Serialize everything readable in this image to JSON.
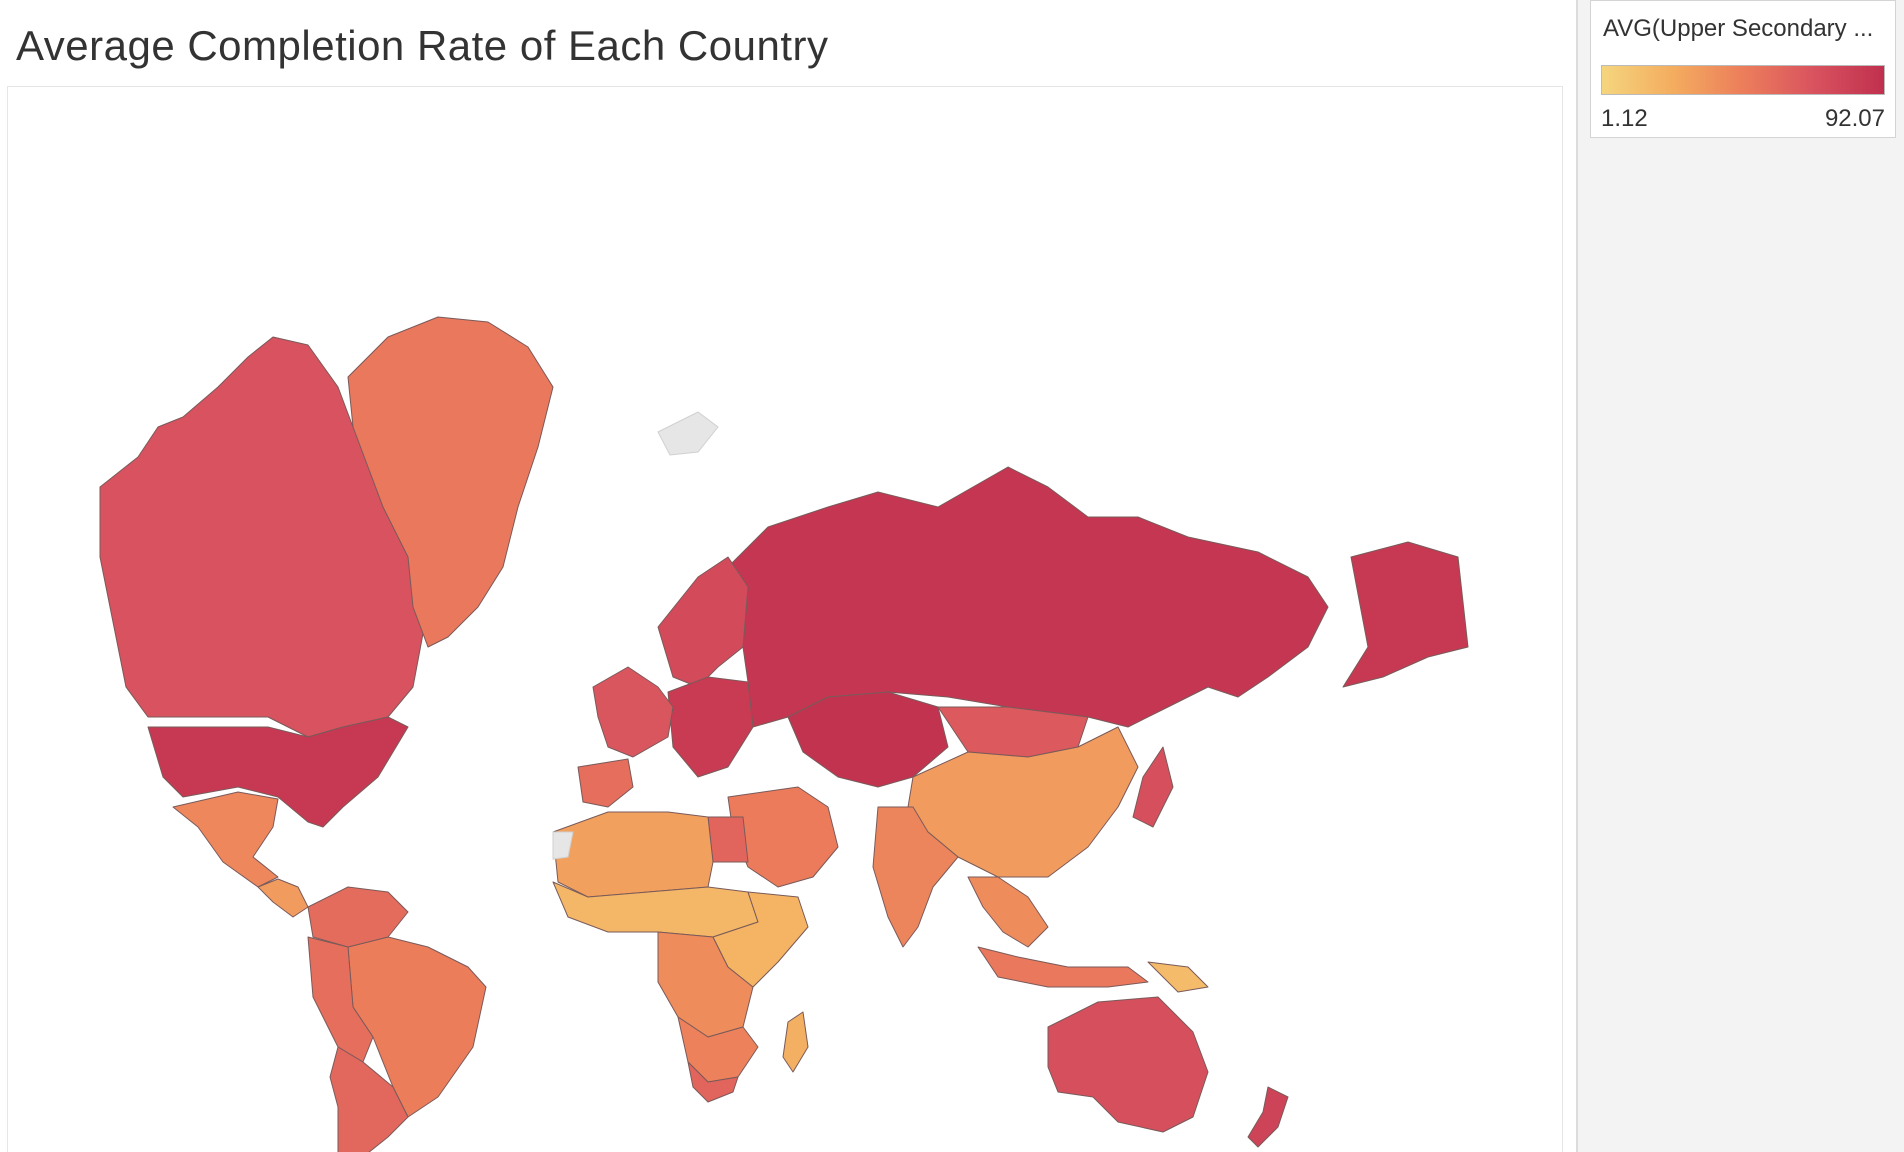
{
  "title": "Average Completion Rate of Each Country",
  "legend": {
    "title": "AVG(Upper Secondary ...",
    "min_label": "1.12",
    "max_label": "92.07",
    "min_value": 1.12,
    "max_value": 92.07,
    "gradient_colors": [
      "#f5d57e",
      "#f4ad5f",
      "#ec7e5b",
      "#d9535f",
      "#c0304e"
    ]
  },
  "colors": {
    "no_data": "#e6e6e6",
    "country_border": "#7a5a5a"
  },
  "chart_data": {
    "type": "choropleth",
    "measure": "AVG(Upper Secondary ...",
    "color_range": [
      1.12,
      92.07
    ],
    "regions": [
      {
        "name": "Canada",
        "value": 70
      },
      {
        "name": "United States",
        "value": 86
      },
      {
        "name": "Greenland",
        "value": 50
      },
      {
        "name": "Mexico",
        "value": 42
      },
      {
        "name": "Central America",
        "value": 32
      },
      {
        "name": "Brazil",
        "value": 47
      },
      {
        "name": "Colombia / Venezuela",
        "value": 56
      },
      {
        "name": "Peru / Bolivia",
        "value": 55
      },
      {
        "name": "Argentina / Chile",
        "value": 58
      },
      {
        "name": "Russia",
        "value": 88
      },
      {
        "name": "Alaska",
        "value": 86
      },
      {
        "name": "Scandinavia",
        "value": 75
      },
      {
        "name": "Central Europe",
        "value": 85
      },
      {
        "name": "Western Europe",
        "value": 68
      },
      {
        "name": "Iberia",
        "value": 55
      },
      {
        "name": "Kazakhstan / Central Asia",
        "value": 90
      },
      {
        "name": "Mongolia",
        "value": 66
      },
      {
        "name": "China",
        "value": 32
      },
      {
        "name": "India",
        "value": 43
      },
      {
        "name": "Southeast Asia",
        "value": 40
      },
      {
        "name": "Japan",
        "value": 72
      },
      {
        "name": "Middle East",
        "value": 48
      },
      {
        "name": "Egypt",
        "value": 60
      },
      {
        "name": "North Africa",
        "value": 30
      },
      {
        "name": "Sahel / West Africa",
        "value": 18
      },
      {
        "name": "Central Africa",
        "value": 40
      },
      {
        "name": "East Africa",
        "value": 20
      },
      {
        "name": "Southern Africa",
        "value": 45
      },
      {
        "name": "South Africa",
        "value": 60
      },
      {
        "name": "Madagascar",
        "value": 22
      },
      {
        "name": "Indonesia",
        "value": 50
      },
      {
        "name": "Papua New Guinea",
        "value": 16
      },
      {
        "name": "Australia",
        "value": 72
      },
      {
        "name": "New Zealand",
        "value": 80
      }
    ]
  }
}
